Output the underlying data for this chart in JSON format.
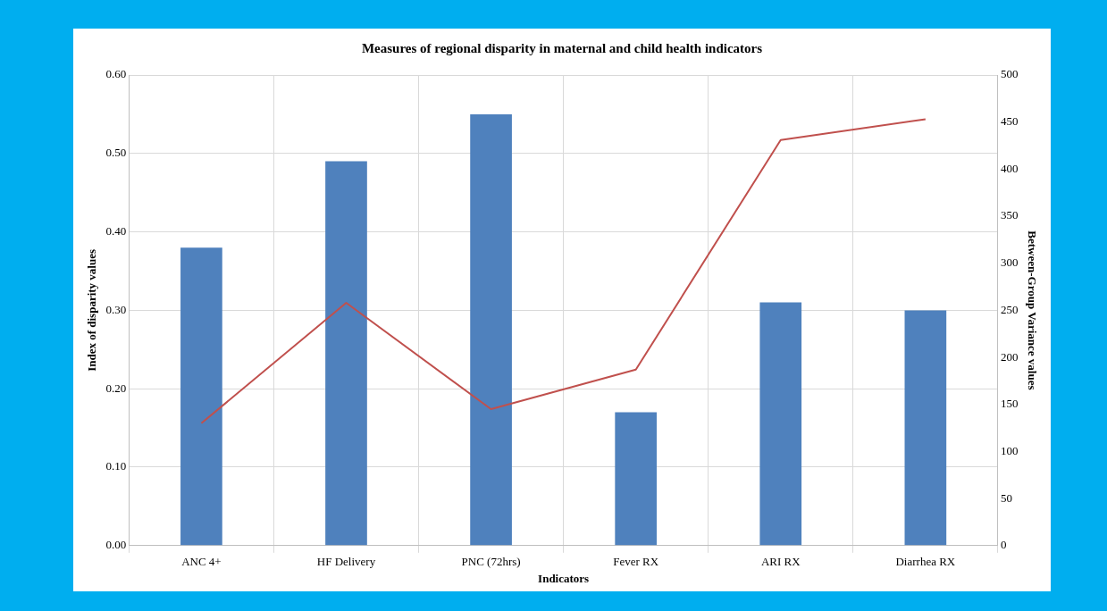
{
  "chart_data": {
    "type": "bar",
    "title": "Measures of regional disparity in maternal and child health indicators",
    "xlabel": "Indicators",
    "ylabel": "Index of disparity values",
    "y2label": "Between-Group Variance values",
    "categories": [
      "ANC 4+",
      "HF Delivery",
      "PNC (72hrs)",
      "Fever RX",
      "ARI RX",
      "Diarrhea RX"
    ],
    "series": [
      {
        "color": "#4f81bd",
        "values": [
          0.38,
          0.49,
          0.55,
          0.17,
          0.31,
          0.3
        ]
      },
      {
        "type": "line",
        "axis": "y2",
        "color": "#c0504d",
        "marker": "none",
        "values": [
          130,
          258,
          145,
          187,
          431,
          453
        ]
      }
    ],
    "ylim": [
      0,
      0.6
    ],
    "yticks": [
      {
        "value": 0,
        "label": "0.00"
      },
      {
        "value": 0.1,
        "label": "0.10"
      },
      {
        "value": 0.2,
        "label": "0.20"
      },
      {
        "value": 0.3,
        "label": "0.30"
      },
      {
        "value": 0.4,
        "label": "0.40"
      },
      {
        "value": 0.5,
        "label": "0.50"
      },
      {
        "value": 0.6,
        "label": "0.60"
      }
    ],
    "y2lim": [
      0,
      500
    ],
    "y2ticks": [
      0,
      50,
      100,
      150,
      200,
      250,
      300,
      350,
      400,
      450,
      500
    ],
    "grid": true
  }
}
